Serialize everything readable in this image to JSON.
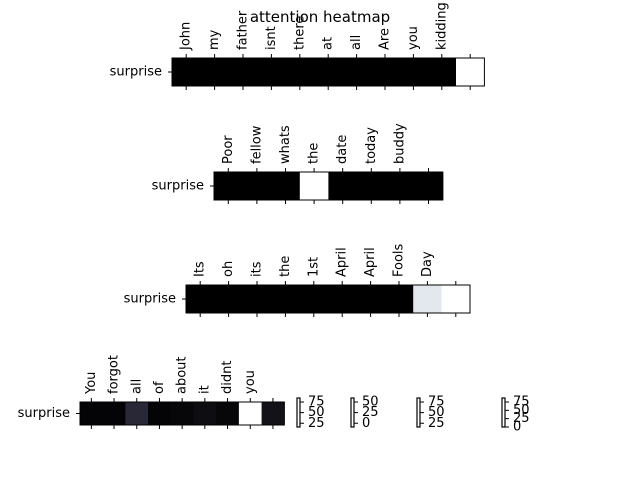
{
  "chart_data": {
    "type": "heatmap",
    "title": "attention heatmap",
    "panels": [
      {
        "row_label": "surprise",
        "tokens": [
          "John",
          "my",
          "father",
          "isnt",
          "there",
          "at",
          "all",
          "Are",
          "you",
          "kidding",
          ""
        ],
        "weights": [
          0.0,
          0.0,
          0.0,
          0.0,
          0.0,
          0.0,
          0.0,
          0.0,
          0.0,
          0.0,
          1.0
        ]
      },
      {
        "row_label": "surprise",
        "tokens": [
          "Poor",
          "fellow",
          "whats",
          "the",
          "date",
          "today",
          "buddy",
          ""
        ],
        "weights": [
          0.0,
          0.0,
          0.0,
          1.0,
          0.0,
          0.0,
          0.0,
          0.0
        ]
      },
      {
        "row_label": "surprise",
        "tokens": [
          "Its",
          "oh",
          "its",
          "the",
          "1st",
          "April",
          "April",
          "Fools",
          "Day",
          ""
        ],
        "weights": [
          0.0,
          0.0,
          0.0,
          0.0,
          0.0,
          0.0,
          0.0,
          0.0,
          0.92,
          1.0
        ]
      },
      {
        "row_label": "surprise",
        "tokens": [
          "You",
          "forgot",
          "all",
          "of",
          "about",
          "it",
          "didnt",
          "you",
          ""
        ],
        "weights": [
          0.02,
          0.02,
          0.18,
          0.02,
          0.03,
          0.06,
          0.03,
          1.0,
          0.08
        ]
      }
    ],
    "colorbars": [
      {
        "ticks": [
          "75",
          "50",
          "25"
        ]
      },
      {
        "ticks": [
          "50",
          "25",
          "0"
        ]
      },
      {
        "ticks": [
          "75",
          "50",
          "25"
        ]
      },
      {
        "ticks": [
          "75",
          "50",
          "25",
          "0"
        ]
      }
    ]
  }
}
